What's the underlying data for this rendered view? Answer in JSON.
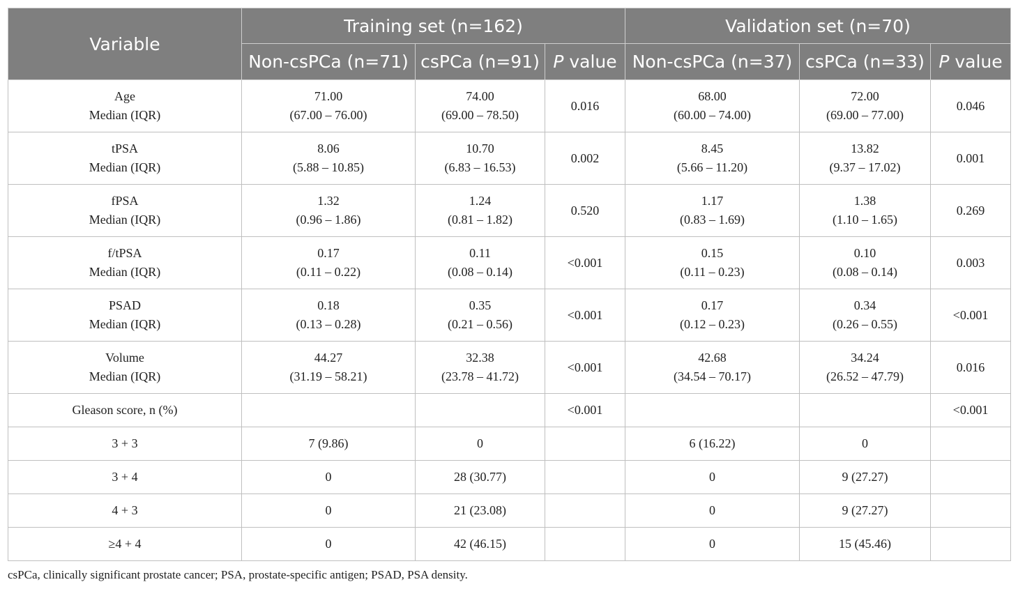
{
  "header": {
    "variable": "Variable",
    "groups": [
      "Training set (n=162)",
      "Validation set (n=70)"
    ],
    "subcols": [
      {
        "label": "Non-csPCa (n=71)"
      },
      {
        "label": "csPCa (n=91)"
      },
      {
        "p": "P",
        "rest": " value"
      },
      {
        "label": "Non-csPCa (n=37)"
      },
      {
        "label": "csPCa (n=33)"
      },
      {
        "p": "P",
        "rest": " value"
      }
    ]
  },
  "stat_rows": [
    {
      "name": "Age",
      "sub": "Median (IQR)",
      "train_non": [
        "71.00",
        "(67.00 – 76.00)"
      ],
      "train_cs": [
        "74.00",
        "(69.00 – 78.50)"
      ],
      "train_p": "0.016",
      "val_non": [
        "68.00",
        "(60.00 – 74.00)"
      ],
      "val_cs": [
        "72.00",
        "(69.00 – 77.00)"
      ],
      "val_p": "0.046"
    },
    {
      "name": "tPSA",
      "sub": "Median (IQR)",
      "train_non": [
        "8.06",
        "(5.88 – 10.85)"
      ],
      "train_cs": [
        "10.70",
        "(6.83 – 16.53)"
      ],
      "train_p": "0.002",
      "val_non": [
        "8.45",
        "(5.66 – 11.20)"
      ],
      "val_cs": [
        "13.82",
        "(9.37 – 17.02)"
      ],
      "val_p": "0.001"
    },
    {
      "name": "fPSA",
      "sub": "Median (IQR)",
      "train_non": [
        "1.32",
        "(0.96 – 1.86)"
      ],
      "train_cs": [
        "1.24",
        "(0.81 – 1.82)"
      ],
      "train_p": "0.520",
      "val_non": [
        "1.17",
        "(0.83 – 1.69)"
      ],
      "val_cs": [
        "1.38",
        "(1.10 – 1.65)"
      ],
      "val_p": "0.269"
    },
    {
      "name": "f/tPSA",
      "sub": "Median (IQR)",
      "train_non": [
        "0.17",
        "(0.11 – 0.22)"
      ],
      "train_cs": [
        "0.11",
        "(0.08 – 0.14)"
      ],
      "train_p": "<0.001",
      "val_non": [
        "0.15",
        "(0.11 – 0.23)"
      ],
      "val_cs": [
        "0.10",
        "(0.08 – 0.14)"
      ],
      "val_p": "0.003"
    },
    {
      "name": "PSAD",
      "sub": "Median (IQR)",
      "train_non": [
        "0.18",
        "(0.13 – 0.28)"
      ],
      "train_cs": [
        "0.35",
        "(0.21 – 0.56)"
      ],
      "train_p": "<0.001",
      "val_non": [
        "0.17",
        "(0.12 – 0.23)"
      ],
      "val_cs": [
        "0.34",
        "(0.26 – 0.55)"
      ],
      "val_p": "<0.001"
    },
    {
      "name": "Volume",
      "sub": "Median (IQR)",
      "train_non": [
        "44.27",
        "(31.19 – 58.21)"
      ],
      "train_cs": [
        "32.38",
        "(23.78 – 41.72)"
      ],
      "train_p": "<0.001",
      "val_non": [
        "42.68",
        "(34.54 – 70.17)"
      ],
      "val_cs": [
        "34.24",
        "(26.52 – 47.79)"
      ],
      "val_p": "0.016"
    }
  ],
  "plain_rows": [
    {
      "name": "Gleason score, n (%)",
      "train_non": "",
      "train_cs": "",
      "train_p": "<0.001",
      "val_non": "",
      "val_cs": "",
      "val_p": "<0.001"
    },
    {
      "name": "3 + 3",
      "train_non": "7 (9.86)",
      "train_cs": "0",
      "train_p": "",
      "val_non": "6 (16.22)",
      "val_cs": "0",
      "val_p": ""
    },
    {
      "name": "3 + 4",
      "train_non": "0",
      "train_cs": "28 (30.77)",
      "train_p": "",
      "val_non": "0",
      "val_cs": "9 (27.27)",
      "val_p": ""
    },
    {
      "name": "4 + 3",
      "train_non": "0",
      "train_cs": "21 (23.08)",
      "train_p": "",
      "val_non": "0",
      "val_cs": "9 (27.27)",
      "val_p": ""
    },
    {
      "name": "≥4 + 4",
      "train_non": "0",
      "train_cs": "42 (46.15)",
      "train_p": "",
      "val_non": "0",
      "val_cs": "15 (45.46)",
      "val_p": ""
    }
  ],
  "footnote": "csPCa, clinically significant prostate cancer; PSA, prostate-specific antigen; PSAD, PSA density."
}
